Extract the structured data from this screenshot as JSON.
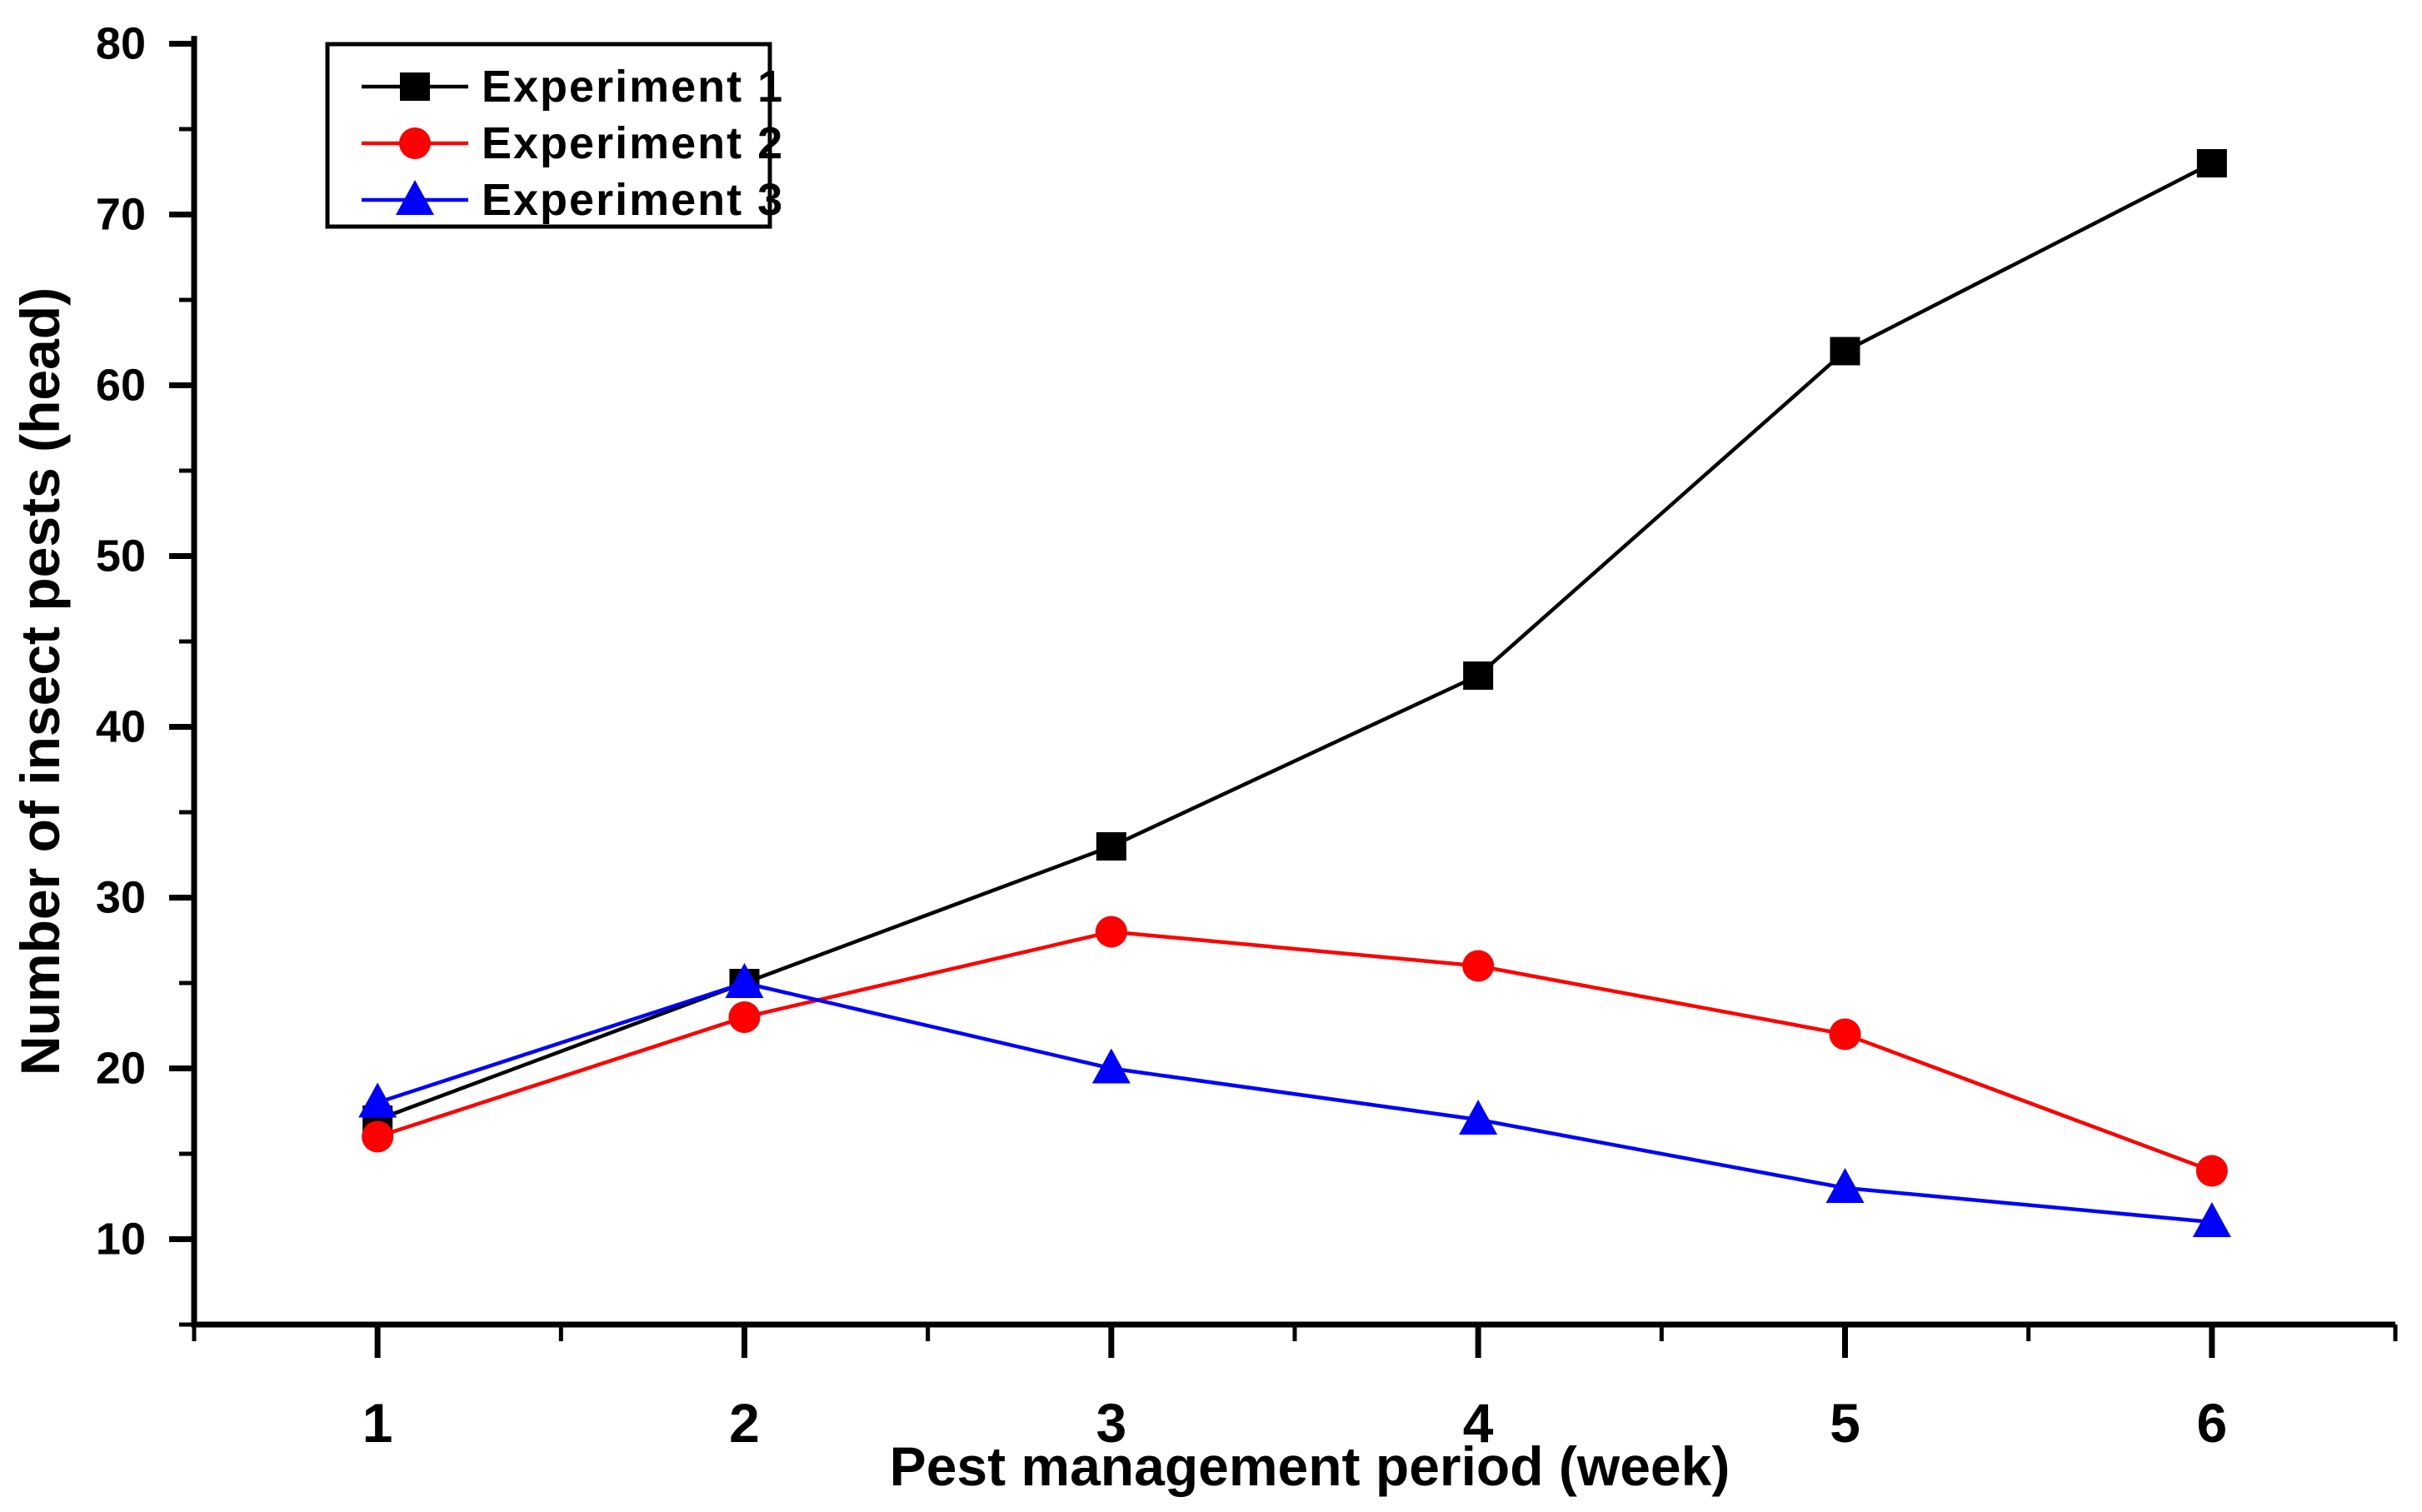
{
  "chart_data": {
    "type": "line",
    "title": "",
    "xlabel": "Pest management period (week)",
    "ylabel": "Number of insect pests (head)",
    "x": [
      1,
      2,
      3,
      4,
      5,
      6
    ],
    "xlim": [
      0.5,
      6.5
    ],
    "ylim": [
      5,
      80.5
    ],
    "x_major_ticks": [
      1,
      2,
      3,
      4,
      5,
      6
    ],
    "x_minor_ticks": [
      0.5,
      1.5,
      2.5,
      3.5,
      4.5,
      5.5,
      6.5
    ],
    "y_major_ticks": [
      10,
      20,
      30,
      40,
      50,
      60,
      70,
      80
    ],
    "y_minor_ticks": [
      5,
      15,
      25,
      35,
      45,
      55,
      65,
      75
    ],
    "grid": false,
    "legend_position": "top-left",
    "series": [
      {
        "name": "Experiment 1",
        "color": "#000000",
        "marker": "square",
        "values": [
          17,
          25,
          33,
          43,
          62,
          73
        ]
      },
      {
        "name": "Experiment 2",
        "color": "#ff0000",
        "marker": "circle",
        "values": [
          16,
          23,
          28,
          26,
          22,
          14
        ]
      },
      {
        "name": "Experiment 3",
        "color": "#0000ff",
        "marker": "triangle",
        "values": [
          18,
          25,
          20,
          17,
          13,
          11
        ]
      }
    ],
    "axis_color": "#000000",
    "background_color": "#ffffff"
  }
}
